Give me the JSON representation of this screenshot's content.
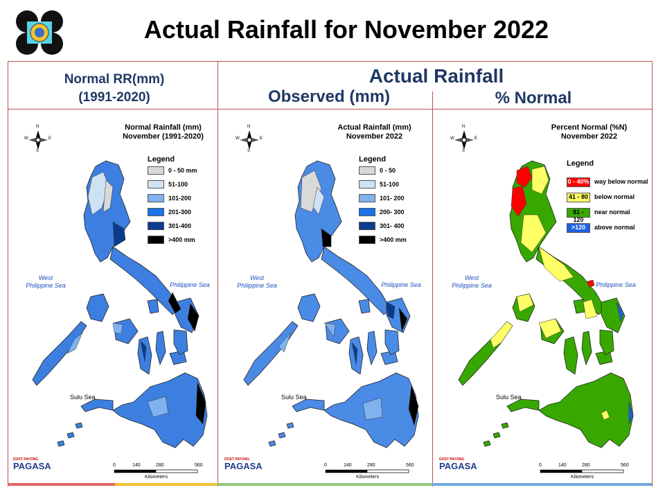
{
  "slide": {
    "title": "Actual Rainfall for November 2022",
    "headers": {
      "left_line1": "Normal RR(mm)",
      "left_line2": "(1991-2020)",
      "right_top": "Actual Rainfall",
      "right_observed": "Observed (mm)",
      "right_percent": "% Normal"
    },
    "bottom_colors": [
      "#e06666",
      "#f1c232",
      "#93c47d",
      "#6fa8dc"
    ]
  },
  "maps": [
    {
      "id": "normal",
      "title_line1": "Normal Rainfall (mm)",
      "title_line2": "November (1991-2020)",
      "legend_title": "Legend",
      "legend": [
        {
          "label": "0 - 50 mm",
          "color": "#d9d9d9"
        },
        {
          "label": "51-100",
          "color": "#cfe2f3"
        },
        {
          "label": "101-200",
          "color": "#7fb2ee"
        },
        {
          "label": "201-300",
          "color": "#1a73e8"
        },
        {
          "label": "301-400",
          "color": "#0b3c8c"
        },
        {
          "label": ">400 mm",
          "color": "#000000"
        }
      ],
      "land_color": "#3d7fe0",
      "seas": {
        "west": "West\nPhilippine Sea",
        "east": "Philippine Sea",
        "sulu": "Sulu Sea"
      },
      "scale": [
        "0",
        "140",
        "280",
        "560"
      ],
      "scale_unit": "Kilometers",
      "compass": [
        "N",
        "E",
        "S",
        "W"
      ]
    },
    {
      "id": "observed",
      "title_line1": "Actual Rainfall (mm)",
      "title_line2": "November 2022",
      "legend_title": "Legend",
      "legend": [
        {
          "label": "0 - 50",
          "color": "#d9d9d9"
        },
        {
          "label": "51-100",
          "color": "#cfe2f3"
        },
        {
          "label": "101- 200",
          "color": "#7fb2ee"
        },
        {
          "label": "200- 300",
          "color": "#1a73e8"
        },
        {
          "label": "301- 400",
          "color": "#0b3c8c"
        },
        {
          "label": ">400 mm",
          "color": "#000000"
        }
      ],
      "land_color": "#4a8be6",
      "seas": {
        "west": "West\nPhilippine Sea",
        "east": "Philippine Sea",
        "sulu": "Sulu Sea"
      },
      "scale": [
        "0",
        "140",
        "280",
        "560"
      ],
      "scale_unit": "Kilometers",
      "compass": [
        "N",
        "E",
        "S",
        "W"
      ]
    },
    {
      "id": "percent",
      "title_line1": "Percent Normal (%N)",
      "title_line2": "November 2022",
      "legend_title": "Legend",
      "legend": [
        {
          "box": "0 - 40%",
          "label": "way below normal",
          "color": "#ff0000"
        },
        {
          "box": "41 - 80",
          "label": "below normal",
          "color": "#ffff66"
        },
        {
          "box": "81 - 120",
          "label": "near normal",
          "color": "#38a800"
        },
        {
          "box": ">120",
          "label": "above normal",
          "color": "#1f5fe0"
        }
      ],
      "land_color": "#38a800",
      "seas": {
        "west": "West\nPhilippine Sea",
        "east": "Philippine Sea",
        "sulu": "Sulu Sea"
      },
      "scale": [
        "0",
        "140",
        "280",
        "560"
      ],
      "scale_unit": "Kilometers",
      "compass": [
        "N",
        "E",
        "S",
        "W"
      ]
    }
  ],
  "branding": {
    "logo_text": "PAGASA",
    "logo_sub": "DOST PAYONG"
  }
}
